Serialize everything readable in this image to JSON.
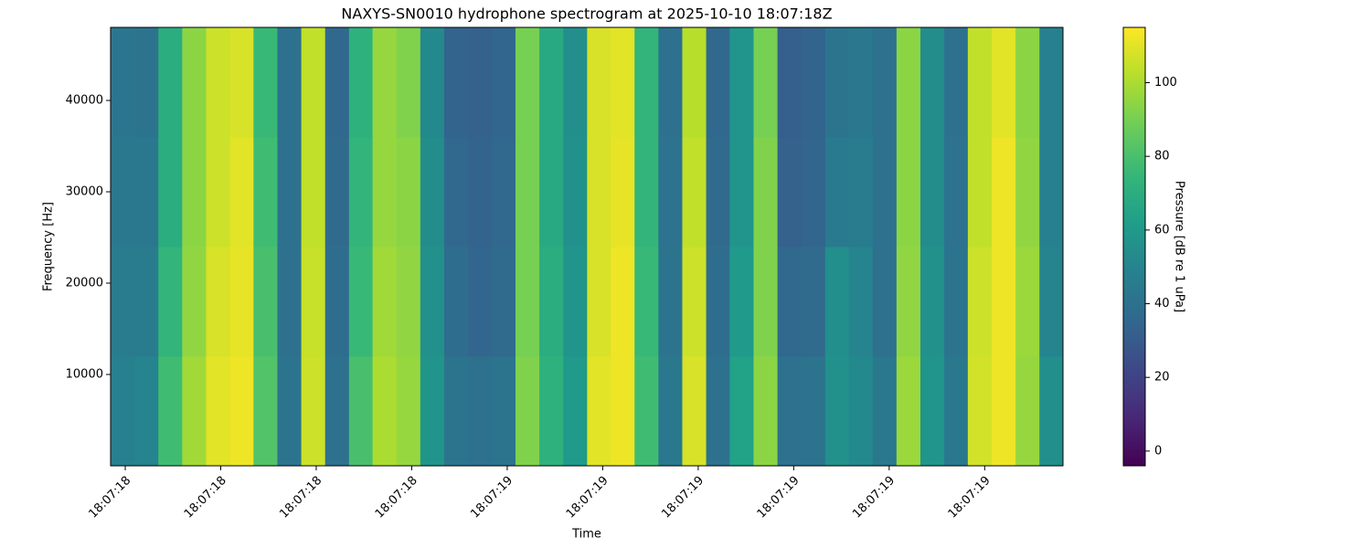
{
  "chart_data": {
    "type": "heatmap",
    "title": "NAXYS-SN0010 hydrophone spectrogram at 2025-10-10 18:07:18Z",
    "xlabel": "Time",
    "ylabel": "Frequency [Hz]",
    "colormap": "viridis",
    "x": [
      18.446,
      18.483,
      18.521,
      18.558,
      18.596,
      18.633,
      18.67,
      18.708,
      18.745,
      18.783,
      18.82,
      18.857,
      18.895,
      18.932,
      18.97,
      19.007,
      19.044,
      19.082,
      19.119,
      19.157,
      19.194,
      19.231,
      19.269,
      19.306,
      19.344,
      19.381,
      19.418,
      19.456,
      19.493,
      19.531,
      19.568,
      19.605,
      19.643,
      19.68,
      19.718,
      19.755,
      19.792,
      19.83,
      19.867,
      19.905
    ],
    "y": [
      6000,
      18000,
      30000,
      42000
    ],
    "values": [
      [
        48,
        50,
        78,
        98,
        110,
        112,
        82,
        42,
        106,
        40,
        80,
        100,
        96,
        58,
        42,
        40,
        42,
        92,
        72,
        60,
        110,
        112,
        78,
        44,
        108,
        40,
        64,
        94,
        40,
        42,
        56,
        52,
        44,
        97,
        58,
        44,
        107,
        112,
        96,
        55
      ],
      [
        46,
        46,
        74,
        95,
        108,
        111,
        80,
        40,
        105,
        38,
        76,
        98,
        95,
        56,
        38,
        35,
        37,
        90,
        70,
        58,
        108,
        112,
        76,
        42,
        106,
        38,
        60,
        92,
        36,
        37,
        55,
        50,
        40,
        95,
        56,
        42,
        106,
        112,
        97,
        50
      ],
      [
        44,
        44,
        70,
        94,
        106,
        110,
        78,
        40,
        104,
        37,
        74,
        96,
        94,
        54,
        36,
        34,
        36,
        90,
        68,
        56,
        108,
        111,
        74,
        41,
        104,
        37,
        58,
        92,
        33,
        35,
        45,
        46,
        40,
        94,
        54,
        41,
        104,
        112,
        95,
        48
      ],
      [
        43,
        42,
        70,
        94,
        106,
        108,
        76,
        40,
        104,
        36,
        72,
        96,
        92,
        52,
        34,
        33,
        35,
        90,
        68,
        55,
        108,
        110,
        74,
        40,
        102,
        36,
        58,
        90,
        32,
        34,
        42,
        44,
        40,
        94,
        54,
        40,
        104,
        110,
        94,
        48
      ]
    ],
    "xlim": [
      18.427,
      19.923
    ],
    "ylim": [
      0,
      48000
    ],
    "xticks": [
      {
        "value": 18.45,
        "label": "18:07:18"
      },
      {
        "value": 18.6,
        "label": "18:07:18"
      },
      {
        "value": 18.75,
        "label": "18:07:18"
      },
      {
        "value": 18.9,
        "label": "18:07:18"
      },
      {
        "value": 19.05,
        "label": "18:07:19"
      },
      {
        "value": 19.2,
        "label": "18:07:19"
      },
      {
        "value": 19.35,
        "label": "18:07:19"
      },
      {
        "value": 19.5,
        "label": "18:07:19"
      },
      {
        "value": 19.65,
        "label": "18:07:19"
      },
      {
        "value": 19.8,
        "label": "18:07:19"
      }
    ],
    "yticks": [
      10000,
      20000,
      30000,
      40000
    ],
    "colorbar": {
      "label": "Pressure [dB re 1 uPa]",
      "lim": [
        -4,
        115
      ],
      "ticks": [
        0,
        20,
        40,
        60,
        80,
        100
      ]
    }
  }
}
